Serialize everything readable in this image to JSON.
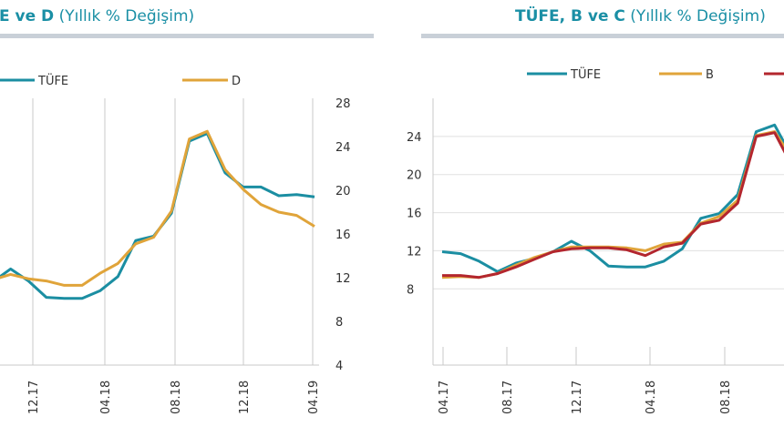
{
  "colors": {
    "tufe": "#1b8ea2",
    "d": "#e0a43a",
    "b": "#e0a43a",
    "c": "#b3262e",
    "title": "#1a8fa5",
    "grid": "#c8c8c8"
  },
  "chart_data": [
    {
      "type": "line",
      "title_bold": "E ve D",
      "title_rest": "(Yıllık % Değişim)",
      "x_ticks": [
        "12.17",
        "04.18",
        "08.18",
        "12.18",
        "04.19"
      ],
      "ylim": [
        4,
        28
      ],
      "y_ticks": [
        "28",
        "24",
        "20",
        "16",
        "12",
        "8",
        "4"
      ],
      "legend": [
        "TÜFE",
        "D"
      ],
      "series": [
        {
          "name": "TÜFE",
          "values": [
            11.6,
            12.8,
            11.7,
            10.2,
            10.1,
            10.1,
            10.8,
            12.1,
            15.4,
            15.8,
            17.9,
            24.5,
            25.2,
            21.6,
            20.3,
            20.3,
            19.5,
            19.6,
            19.4
          ]
        },
        {
          "name": "D",
          "values": [
            11.8,
            12.3,
            11.9,
            11.7,
            11.3,
            11.3,
            12.4,
            13.3,
            15.1,
            15.7,
            18.1,
            24.7,
            25.4,
            21.9,
            20.1,
            18.7,
            18.0,
            17.7,
            16.7
          ]
        }
      ]
    },
    {
      "type": "line",
      "title_bold": "TÜFE, B ve C",
      "title_rest": "(Yıllık % Değişim)",
      "x_ticks": [
        "04.17",
        "08.17",
        "12.17",
        "04.18",
        "08.18"
      ],
      "ylim": [
        0,
        28
      ],
      "y_ticks": [
        "24",
        "20",
        "16",
        "12",
        "8"
      ],
      "legend": [
        "TÜFE",
        "B",
        ""
      ],
      "series": [
        {
          "name": "TÜFE",
          "values": [
            11.9,
            11.7,
            10.9,
            9.8,
            10.7,
            11.2,
            11.9,
            13.0,
            12.0,
            10.4,
            10.3,
            10.3,
            10.9,
            12.2,
            15.4,
            15.9,
            17.9,
            24.5,
            25.2,
            21.6
          ]
        },
        {
          "name": "B",
          "values": [
            9.2,
            9.3,
            9.2,
            9.6,
            10.5,
            11.3,
            11.9,
            12.4,
            12.4,
            12.4,
            12.3,
            12.0,
            12.7,
            12.9,
            14.9,
            15.6,
            17.3,
            24.1,
            24.5,
            21.5
          ]
        },
        {
          "name": "C",
          "values": [
            9.4,
            9.4,
            9.2,
            9.6,
            10.3,
            11.1,
            11.9,
            12.2,
            12.3,
            12.3,
            12.1,
            11.5,
            12.4,
            12.8,
            14.8,
            15.2,
            17.0,
            24.0,
            24.4,
            20.7
          ]
        }
      ]
    }
  ]
}
